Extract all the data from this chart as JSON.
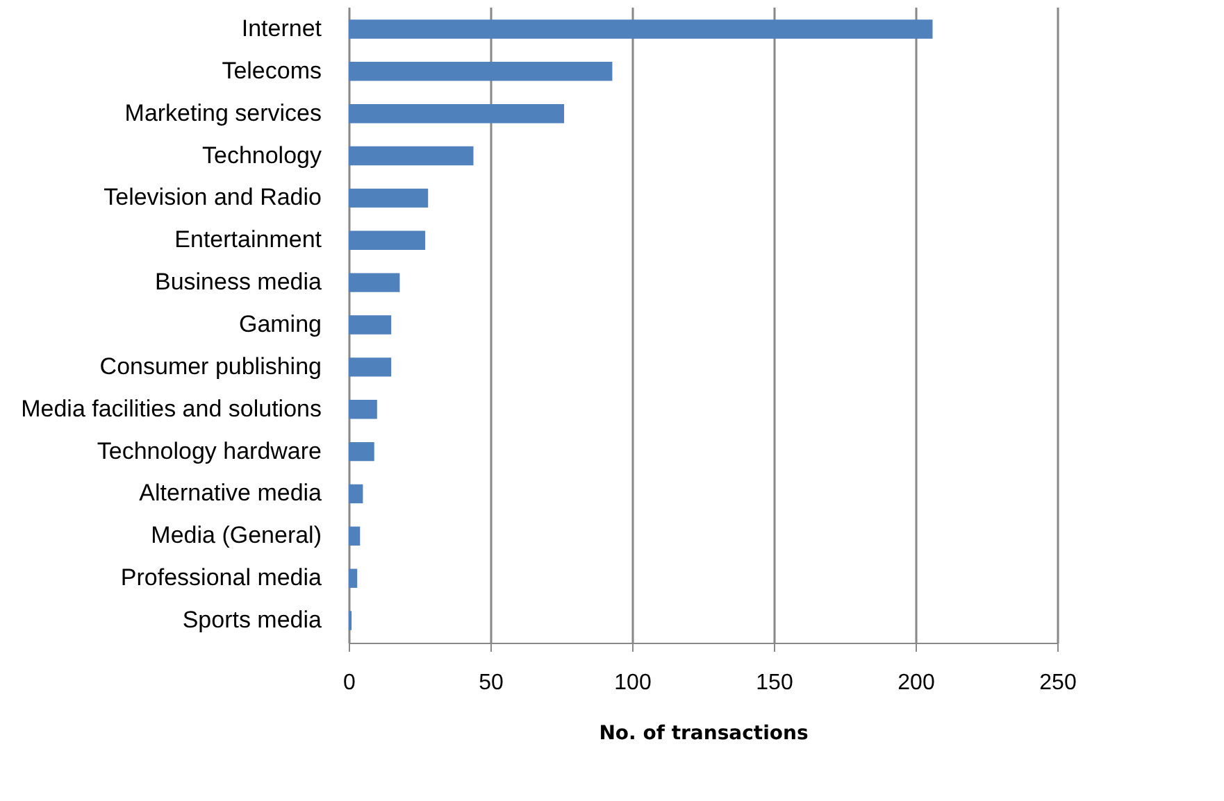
{
  "chart_data": {
    "type": "bar",
    "orientation": "horizontal",
    "xlabel": "No. of transactions",
    "categories": [
      "Internet",
      "Telecoms",
      "Marketing services",
      "Technology",
      "Television and Radio",
      "Entertainment",
      "Business media",
      "Gaming",
      "Consumer publishing",
      "Media facilities and solutions",
      "Technology hardware",
      "Alternative media",
      "Media (General)",
      "Professional media",
      "Sports media"
    ],
    "values": [
      206,
      93,
      76,
      44,
      28,
      27,
      18,
      15,
      15,
      10,
      9,
      5,
      4,
      3,
      1
    ],
    "color": "#4f81bd",
    "xlim": [
      0,
      250
    ],
    "xticks": [
      0,
      50,
      100,
      150,
      200,
      250
    ],
    "grid": "x"
  }
}
